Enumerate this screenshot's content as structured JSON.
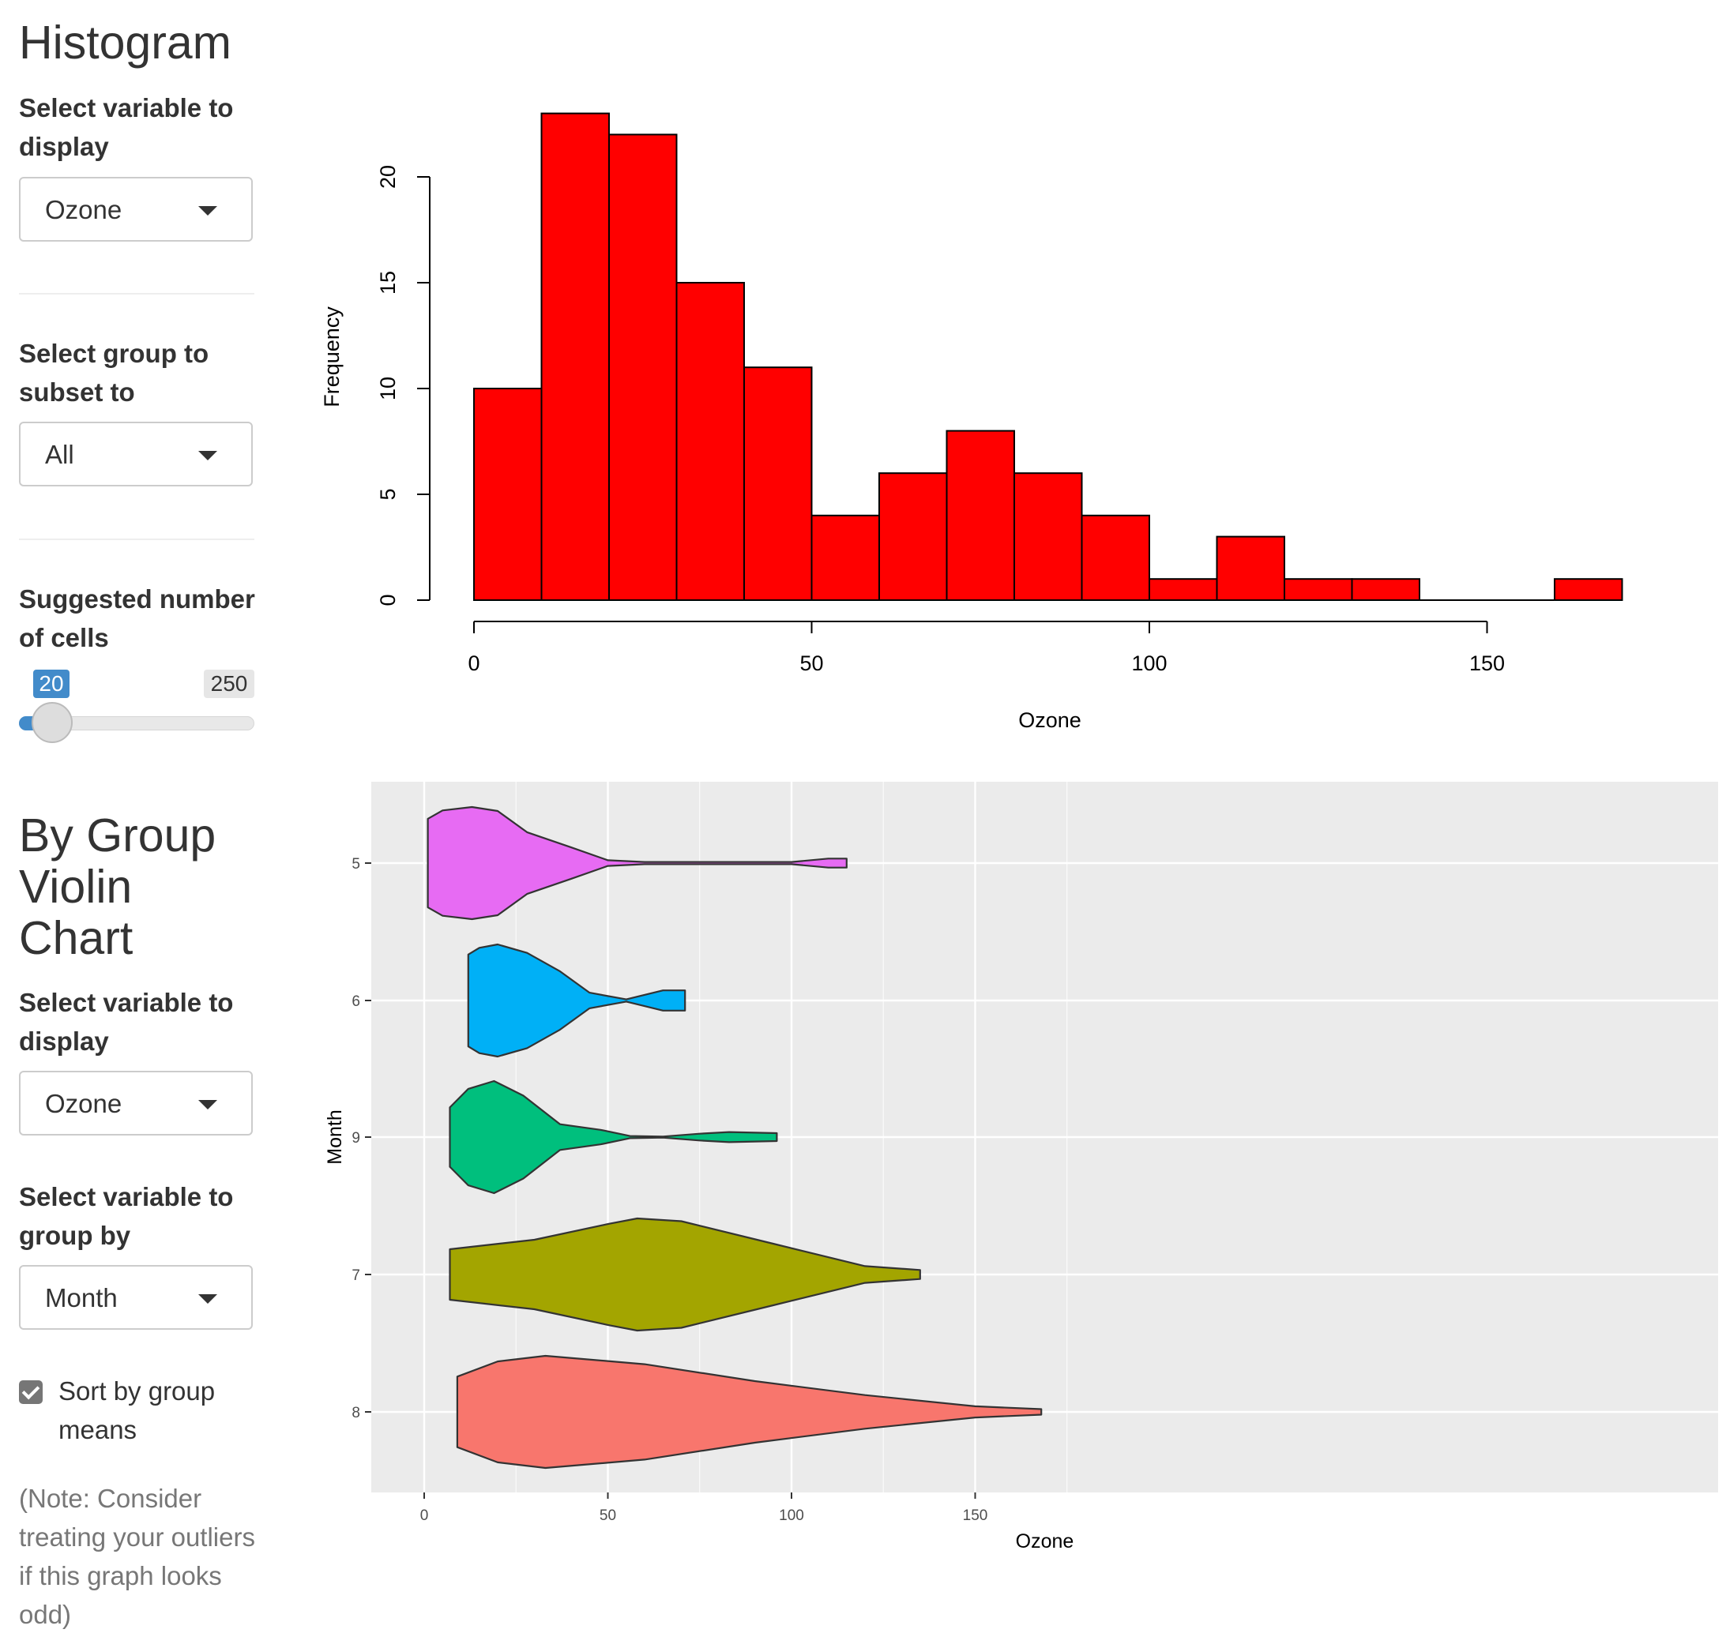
{
  "histogram_panel": {
    "title": "Histogram",
    "variable_label": "Select variable to display",
    "variable_value": "Ozone",
    "group_label": "Select group to subset to",
    "group_value": "All",
    "cells_label": "Suggested number of cells",
    "slider": {
      "value": "20",
      "max": "250",
      "value_fraction": 0.0
    }
  },
  "violin_panel": {
    "title_lines": [
      "By Group",
      "Violin",
      "Chart"
    ],
    "variable_label": "Select variable to display",
    "variable_value": "Ozone",
    "groupby_label": "Select variable to group by",
    "groupby_value": "Month",
    "sort_label": "Sort by group means",
    "sort_checked": true,
    "note": "(Note: Consider treating your outliers if this graph looks odd)"
  },
  "chart_data": [
    {
      "type": "bar",
      "chart_kind": "histogram",
      "bins": [
        [
          0,
          10
        ],
        [
          10,
          20
        ],
        [
          20,
          30
        ],
        [
          30,
          40
        ],
        [
          40,
          50
        ],
        [
          50,
          60
        ],
        [
          60,
          70
        ],
        [
          70,
          80
        ],
        [
          80,
          90
        ],
        [
          90,
          100
        ],
        [
          100,
          110
        ],
        [
          110,
          120
        ],
        [
          120,
          130
        ],
        [
          130,
          140
        ],
        [
          140,
          150
        ],
        [
          150,
          160
        ],
        [
          160,
          170
        ]
      ],
      "values": [
        10,
        23,
        22,
        15,
        11,
        4,
        6,
        8,
        6,
        4,
        1,
        3,
        1,
        1,
        0,
        0,
        1
      ],
      "xlabel": "Ozone",
      "ylabel": "Frequency",
      "xlim": [
        0,
        170
      ],
      "ylim": [
        0,
        23
      ],
      "xticks": [
        "0",
        "50",
        "100",
        "150"
      ],
      "yticks": [
        "0",
        "5",
        "10",
        "15",
        "20"
      ],
      "bar_color": "#ff0000"
    },
    {
      "type": "violin",
      "xlabel": "Ozone",
      "ylabel": "Month",
      "xlim": [
        -7,
        176
      ],
      "xticks": [
        "0",
        "50",
        "100",
        "150"
      ],
      "background": "#ebebeb",
      "groups": [
        {
          "label": "5",
          "color": "#e76bf3",
          "min": 1,
          "max": 115,
          "profile": [
            [
              1,
              0.79
            ],
            [
              5,
              0.94
            ],
            [
              13,
              1.0
            ],
            [
              20,
              0.93
            ],
            [
              28,
              0.55
            ],
            [
              40,
              0.28
            ],
            [
              50,
              0.05
            ],
            [
              60,
              0.02
            ],
            [
              100,
              0.02
            ],
            [
              110,
              0.08
            ],
            [
              115,
              0.08
            ]
          ]
        },
        {
          "label": "6",
          "color": "#00b0f6",
          "min": 12,
          "max": 71,
          "profile": [
            [
              12,
              0.82
            ],
            [
              15,
              0.94
            ],
            [
              20,
              1.0
            ],
            [
              28,
              0.85
            ],
            [
              37,
              0.52
            ],
            [
              45,
              0.14
            ],
            [
              55,
              0.02
            ],
            [
              65,
              0.18
            ],
            [
              71,
              0.18
            ]
          ]
        },
        {
          "label": "9",
          "color": "#00bf7d",
          "min": 7,
          "max": 96,
          "profile": [
            [
              7,
              0.53
            ],
            [
              12,
              0.86
            ],
            [
              19,
              1.0
            ],
            [
              27,
              0.74
            ],
            [
              37,
              0.23
            ],
            [
              48,
              0.13
            ],
            [
              56,
              0.02
            ],
            [
              65,
              0.01
            ],
            [
              75,
              0.06
            ],
            [
              83,
              0.09
            ],
            [
              96,
              0.07
            ]
          ]
        },
        {
          "label": "7",
          "color": "#a3a500",
          "min": 7,
          "max": 135,
          "profile": [
            [
              7,
              0.45
            ],
            [
              30,
              0.62
            ],
            [
              50,
              0.9
            ],
            [
              58,
              1.0
            ],
            [
              70,
              0.95
            ],
            [
              95,
              0.55
            ],
            [
              120,
              0.15
            ],
            [
              135,
              0.08
            ]
          ]
        },
        {
          "label": "8",
          "color": "#f8766d",
          "min": 9,
          "max": 168,
          "profile": [
            [
              9,
              0.63
            ],
            [
              20,
              0.9
            ],
            [
              33,
              1.0
            ],
            [
              60,
              0.85
            ],
            [
              90,
              0.55
            ],
            [
              120,
              0.3
            ],
            [
              150,
              0.1
            ],
            [
              168,
              0.05
            ]
          ]
        }
      ]
    }
  ]
}
